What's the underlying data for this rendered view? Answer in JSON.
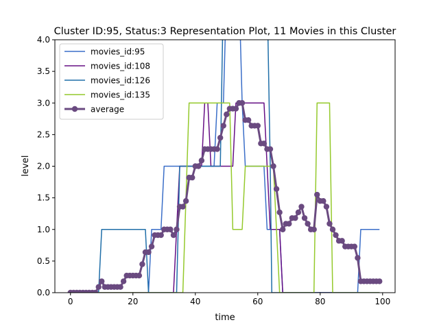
{
  "chart_data": {
    "type": "line",
    "title": "Cluster ID:95, Status:3 Representation Plot, 11 Movies in this Cluster",
    "xlabel": "time",
    "ylabel": "level",
    "xlim": [
      -5,
      104
    ],
    "ylim": [
      0,
      4.0
    ],
    "xticks": [
      0,
      20,
      40,
      60,
      80,
      100
    ],
    "xtick_labels": [
      "0",
      "20",
      "40",
      "60",
      "80",
      "100"
    ],
    "yticks": [
      0,
      0.5,
      1.0,
      1.5,
      2.0,
      2.5,
      3.0,
      3.5,
      4.0
    ],
    "ytick_labels": [
      "0.0",
      "0.5",
      "1.0",
      "1.5",
      "2.0",
      "2.5",
      "3.0",
      "3.5",
      "4.0"
    ],
    "grid": false,
    "legend_position": "upper-left",
    "series": [
      {
        "name": "movies_id:95",
        "color": "#3a6ec8",
        "line_width": 1.5,
        "points": [
          [
            0,
            0
          ],
          [
            25,
            0
          ],
          [
            26,
            1
          ],
          [
            29,
            1
          ],
          [
            30,
            2
          ],
          [
            46,
            2
          ],
          [
            47,
            3
          ],
          [
            49,
            3
          ],
          [
            50,
            4.8
          ],
          [
            54,
            4.8
          ],
          [
            55,
            3
          ],
          [
            56,
            2
          ],
          [
            62,
            2
          ],
          [
            63,
            1
          ],
          [
            67,
            1
          ],
          [
            68,
            0
          ],
          [
            92,
            0
          ],
          [
            93,
            1
          ],
          [
            99,
            1
          ]
        ]
      },
      {
        "name": "movies_id:108",
        "color": "#650e84",
        "line_width": 1.5,
        "points": [
          [
            0,
            0
          ],
          [
            33,
            0
          ],
          [
            34,
            1
          ],
          [
            35,
            2
          ],
          [
            42,
            2
          ],
          [
            43,
            3
          ],
          [
            44,
            3
          ],
          [
            45,
            2
          ],
          [
            52,
            2
          ],
          [
            53,
            3
          ],
          [
            62,
            3
          ],
          [
            63,
            2
          ],
          [
            64,
            1
          ],
          [
            67,
            1
          ],
          [
            68,
            0
          ],
          [
            99,
            0
          ]
        ]
      },
      {
        "name": "movies_id:126",
        "color": "#1f6ea8",
        "line_width": 1.5,
        "points": [
          [
            0,
            0
          ],
          [
            9,
            0
          ],
          [
            10,
            1
          ],
          [
            24,
            1
          ],
          [
            25,
            0
          ],
          [
            34,
            0
          ],
          [
            35,
            2
          ],
          [
            48,
            2
          ],
          [
            49,
            4.8
          ],
          [
            63,
            4.8
          ],
          [
            64,
            2
          ],
          [
            64.5,
            0
          ],
          [
            99,
            0
          ]
        ]
      },
      {
        "name": "movies_id:135",
        "color": "#94c92b",
        "line_width": 1.5,
        "points": [
          [
            0,
            0
          ],
          [
            36,
            0
          ],
          [
            38,
            3
          ],
          [
            51,
            3
          ],
          [
            52,
            1
          ],
          [
            55,
            1
          ],
          [
            56,
            2
          ],
          [
            65,
            2
          ],
          [
            67,
            0
          ],
          [
            78,
            0
          ],
          [
            79,
            3
          ],
          [
            83,
            3
          ],
          [
            84,
            0
          ],
          [
            99,
            0
          ]
        ]
      },
      {
        "name": "average",
        "color": "#6a4a80",
        "line_width": 3,
        "marker": "circle",
        "values": [
          0,
          0,
          0,
          0,
          0,
          0,
          0,
          0,
          0,
          0.09,
          0.18,
          0.09,
          0.09,
          0.09,
          0.09,
          0.09,
          0.09,
          0.18,
          0.27,
          0.27,
          0.27,
          0.27,
          0.27,
          0.45,
          0.64,
          0.64,
          0.73,
          0.91,
          0.91,
          0.91,
          1.0,
          1.0,
          1.0,
          0.91,
          1.0,
          1.36,
          1.36,
          1.45,
          1.82,
          1.82,
          2.0,
          2.0,
          2.09,
          2.27,
          2.27,
          2.27,
          2.27,
          2.27,
          2.45,
          2.64,
          2.82,
          2.91,
          2.91,
          2.91,
          3.0,
          3.0,
          2.73,
          2.73,
          2.64,
          2.64,
          2.64,
          2.36,
          2.36,
          2.27,
          2.27,
          2.0,
          1.64,
          1.27,
          1.0,
          1.09,
          1.09,
          1.18,
          1.18,
          1.27,
          1.36,
          1.18,
          1.09,
          1.0,
          1.0,
          1.55,
          1.45,
          1.45,
          1.36,
          1.09,
          1.0,
          0.91,
          0.82,
          0.82,
          0.73,
          0.73,
          0.73,
          0.73,
          0.55,
          0.18,
          0.18,
          0.18,
          0.18,
          0.18,
          0.18,
          0.18
        ]
      }
    ]
  }
}
